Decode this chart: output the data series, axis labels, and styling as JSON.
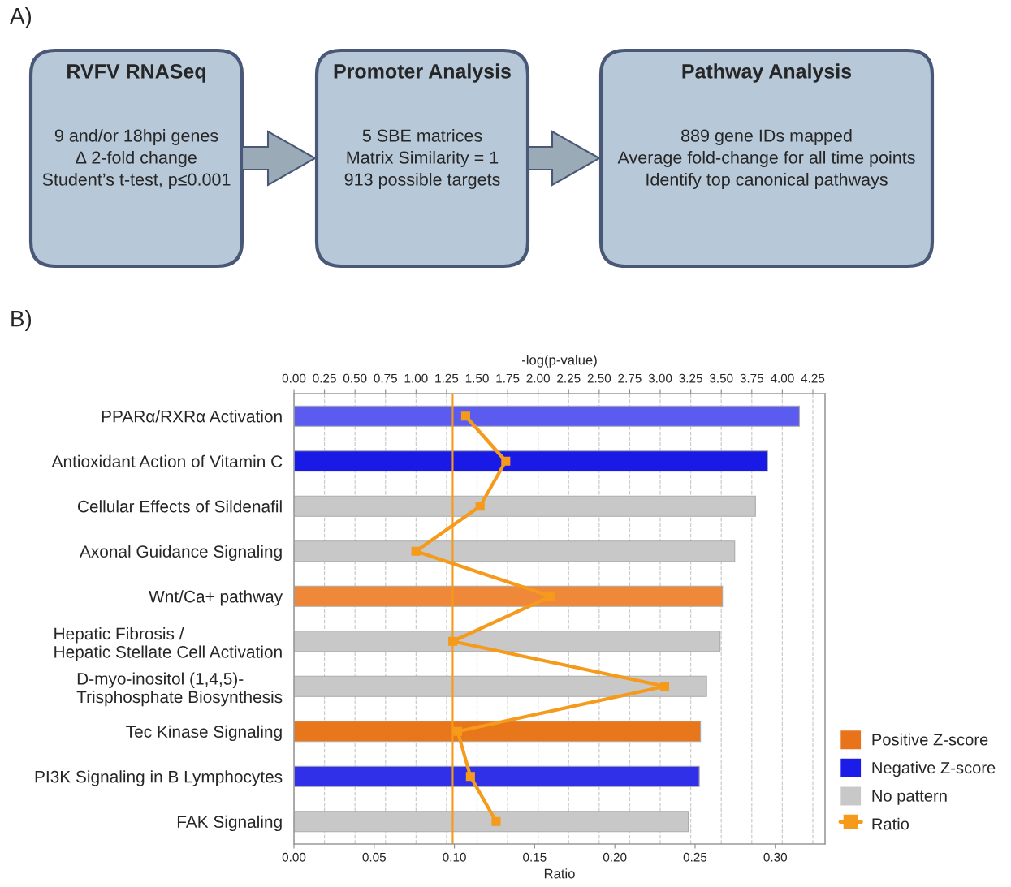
{
  "chart_data": [
    {
      "type": "other",
      "title": "A)",
      "annotations": [
        "RVFV RNASeq",
        "9 and/or 18hpi genes",
        "∆ 2-fold change",
        "Student’s t-test, p≤0.001",
        "Promoter Analysis",
        "5 SBE matrices",
        "Matrix Similarity = 1",
        "913 possible targets",
        "Pathway Analysis",
        "889 gene IDs mapped",
        "Average fold-change for all time points",
        "Identify top canonical pathways"
      ]
    },
    {
      "type": "bar",
      "title": "B)",
      "orientation": "horizontal",
      "x2label": "-log(p-value)",
      "xlabel": "Ratio",
      "categories": [
        "PPARα/RXRα Activation",
        "Antioxidant Action of Vitamin C",
        "Cellular Effects of Sildenafil",
        "Axonal Guidance Signaling",
        "Wnt/Ca+ pathway",
        "Hepatic Fibrosis /\nHepatic Stellate Cell Activation",
        "D-myo-inositol (1,4,5)-\nTrisphosphate Biosynthesis",
        "Tec Kinase Signaling",
        "PI3K Signaling in B Lymphocytes",
        "FAK Signaling"
      ],
      "series": [
        {
          "name": "Positive Z-score",
          "type": "bar",
          "axis": "x2",
          "color": "#e8731a",
          "values": [
            null,
            null,
            null,
            null,
            3.51,
            null,
            null,
            3.33,
            null,
            null
          ],
          "colors": [
            null,
            null,
            null,
            null,
            "#f0883a",
            null,
            null,
            "#e8761a",
            null,
            null
          ]
        },
        {
          "name": "Negative Z-score",
          "type": "bar",
          "axis": "x2",
          "color": "#1c1ce8",
          "values": [
            4.14,
            3.88,
            null,
            null,
            null,
            null,
            null,
            null,
            3.32,
            null
          ],
          "colors": [
            "#5b5bf0",
            "#1a1ae6",
            null,
            null,
            null,
            null,
            null,
            null,
            "#3030e8",
            null
          ]
        },
        {
          "name": "No pattern",
          "type": "bar",
          "axis": "x2",
          "color": "#c8c8c8",
          "values": [
            null,
            null,
            3.78,
            3.61,
            null,
            3.49,
            3.38,
            null,
            null,
            3.23
          ]
        },
        {
          "name": "Ratio",
          "type": "line",
          "color": "#f59a1a",
          "marker": "square",
          "values": [
            0.107,
            0.132,
            0.116,
            0.076,
            0.16,
            0.099,
            0.231,
            0.102,
            0.11,
            0.126
          ]
        }
      ],
      "xlim": [
        0,
        0.331
      ],
      "xticks": [
        {
          "value": 0,
          "label": "0.00"
        },
        {
          "value": 0.05,
          "label": "0.05"
        },
        {
          "value": 0.1,
          "label": "0.10"
        },
        {
          "value": 0.15,
          "label": "0.15"
        },
        {
          "value": 0.2,
          "label": "0.20"
        },
        {
          "value": 0.25,
          "label": "0.25"
        },
        {
          "value": 0.3,
          "label": "0.30"
        }
      ],
      "x2lim": [
        0,
        4.35
      ],
      "x2ticks": [
        {
          "value": 0,
          "label": "0.00"
        },
        {
          "value": 0.25,
          "label": "0.25"
        },
        {
          "value": 0.5,
          "label": "0.50"
        },
        {
          "value": 0.75,
          "label": "0.75"
        },
        {
          "value": 1,
          "label": "1.00"
        },
        {
          "value": 1.25,
          "label": "1.25"
        },
        {
          "value": 1.5,
          "label": "1.50"
        },
        {
          "value": 1.75,
          "label": "1.75"
        },
        {
          "value": 2,
          "label": "2.00"
        },
        {
          "value": 2.25,
          "label": "2.25"
        },
        {
          "value": 2.5,
          "label": "2.50"
        },
        {
          "value": 2.75,
          "label": "2.75"
        },
        {
          "value": 3,
          "label": "3.00"
        },
        {
          "value": 3.25,
          "label": "3.25"
        },
        {
          "value": 3.5,
          "label": "3.50"
        },
        {
          "value": 3.75,
          "label": "3.75"
        },
        {
          "value": 4,
          "label": "4.00"
        },
        {
          "value": 4.25,
          "label": "4.25"
        }
      ],
      "ref_lines": [
        {
          "axis": "x2",
          "value": 1.3,
          "color": "#f59a1a"
        }
      ],
      "grid": true,
      "legend": "right"
    }
  ]
}
